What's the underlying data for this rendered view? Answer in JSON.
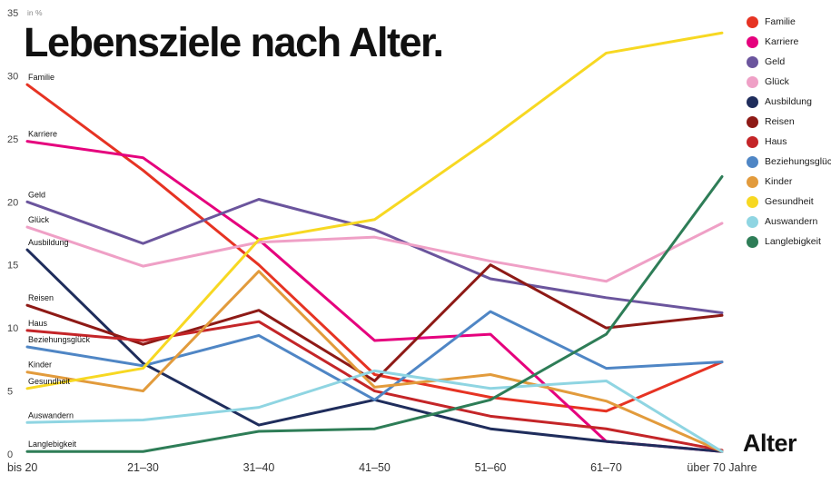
{
  "title": "Lebensziele nach Alter.",
  "unit_label": "in %",
  "x_axis_title": "Alter",
  "chart_data": {
    "type": "line",
    "title": "Lebensziele nach Alter.",
    "xlabel": "Alter",
    "ylabel": "in %",
    "ylim": [
      0,
      35
    ],
    "yticks": [
      0,
      5,
      10,
      15,
      20,
      25,
      30,
      35
    ],
    "grid": false,
    "legend_position": "top-right",
    "categories": [
      "bis 20",
      "21–30",
      "31–40",
      "41–50",
      "51–60",
      "61–70",
      "über 70 Jahre"
    ],
    "series": [
      {
        "name": "Familie",
        "color": "#e63323",
        "values": [
          29.3,
          22.5,
          15.0,
          6.3,
          4.5,
          3.4,
          7.3
        ]
      },
      {
        "name": "Karriere",
        "color": "#e5007d",
        "values": [
          24.8,
          23.5,
          17.0,
          9.0,
          9.5,
          1.0,
          0.2
        ]
      },
      {
        "name": "Geld",
        "color": "#6b559d",
        "values": [
          20.0,
          16.7,
          20.2,
          17.8,
          13.9,
          12.4,
          11.2
        ]
      },
      {
        "name": "Glück",
        "color": "#efa0c6",
        "values": [
          18.0,
          14.9,
          16.8,
          17.2,
          15.3,
          13.7,
          18.3
        ]
      },
      {
        "name": "Ausbildung",
        "color": "#1f2d5c",
        "values": [
          16.2,
          7.2,
          2.3,
          4.3,
          2.0,
          1.0,
          0.2
        ]
      },
      {
        "name": "Reisen",
        "color": "#8e1a16",
        "values": [
          11.8,
          8.7,
          11.4,
          5.8,
          15.0,
          10.0,
          11.0
        ]
      },
      {
        "name": "Haus",
        "color": "#c42528",
        "values": [
          9.8,
          9.0,
          10.5,
          5.0,
          3.0,
          2.0,
          0.3
        ]
      },
      {
        "name": "Beziehungsglück",
        "color": "#4f86c5",
        "values": [
          8.5,
          7.0,
          9.4,
          4.3,
          11.3,
          6.8,
          7.3
        ]
      },
      {
        "name": "Kinder",
        "color": "#e29b3c",
        "values": [
          6.5,
          5.0,
          14.5,
          5.3,
          6.3,
          4.2,
          0.2
        ]
      },
      {
        "name": "Gesundheit",
        "color": "#f7d822",
        "values": [
          5.2,
          6.8,
          17.0,
          18.6,
          25.0,
          31.8,
          33.4
        ]
      },
      {
        "name": "Auswandern",
        "color": "#8fd5e2",
        "values": [
          2.5,
          2.7,
          3.7,
          6.6,
          5.2,
          5.8,
          0.2
        ]
      },
      {
        "name": "Langlebigkeit",
        "color": "#2e7d57",
        "values": [
          0.2,
          0.2,
          1.8,
          2.0,
          4.3,
          9.5,
          22.0
        ]
      }
    ]
  }
}
